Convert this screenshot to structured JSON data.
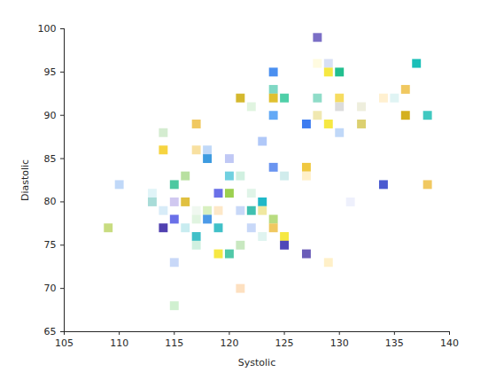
{
  "chart_data": {
    "type": "scatter",
    "xlabel": "Systolic",
    "ylabel": "Diastolic",
    "marker": "square",
    "xlim": [
      105,
      140
    ],
    "xticks": [
      105,
      110,
      115,
      120,
      125,
      130,
      135,
      140
    ],
    "ylim": [
      65,
      100
    ],
    "yticks": [
      65,
      70,
      75,
      80,
      85,
      90,
      95,
      100
    ],
    "grid": false,
    "x": [
      128,
      137,
      128,
      129,
      124,
      129,
      130,
      136,
      124,
      121,
      124,
      125,
      128,
      130,
      134,
      135,
      122,
      130,
      132,
      117,
      124,
      128,
      136,
      138,
      127,
      129,
      132,
      130,
      114,
      123,
      114,
      117,
      118,
      118,
      120,
      124,
      127,
      127,
      125,
      116,
      120,
      121,
      110,
      115,
      134,
      138,
      113,
      119,
      120,
      122,
      113,
      115,
      116,
      123,
      131,
      114,
      117,
      118,
      119,
      121,
      122,
      123,
      124,
      115,
      118,
      117,
      109,
      114,
      116,
      119,
      122,
      124,
      117,
      123,
      125,
      117,
      121,
      125,
      119,
      120,
      127,
      115,
      129,
      121,
      115
    ],
    "y": [
      99,
      96,
      96,
      96,
      95,
      95,
      95,
      93,
      93,
      92,
      92,
      92,
      92,
      92,
      92,
      92,
      91,
      91,
      91,
      89,
      90,
      90,
      90,
      90,
      89,
      89,
      89,
      88,
      88,
      87,
      86,
      86,
      86,
      85,
      85,
      84,
      84,
      83,
      83,
      83,
      83,
      83,
      82,
      82,
      82,
      82,
      81,
      81,
      81,
      81,
      80,
      80,
      80,
      80,
      80,
      79,
      79,
      79,
      79,
      79,
      79,
      79,
      78,
      78,
      78,
      78,
      77,
      77,
      77,
      77,
      77,
      77,
      76,
      76,
      76,
      75,
      75,
      75,
      74,
      74,
      74,
      73,
      73,
      70,
      68
    ],
    "colors": [
      "#7b6fc6",
      "#1abfb8",
      "#fffbe0",
      "#d8e0f5",
      "#4a8ff0",
      "#f6e842",
      "#22bf8f",
      "#f0c860",
      "#7fd8c4",
      "#d4b82e",
      "#e0c030",
      "#4fcfa8",
      "#8fdcc8",
      "#f6dc60",
      "#fff0d0",
      "#e0f4f4",
      "#e0f4e0",
      "#dcdcdc",
      "#eeeedd",
      "#f0c860",
      "#63a9f6",
      "#f0e8b0",
      "#d4b020",
      "#40c8c0",
      "#3d7cf0",
      "#f6e842",
      "#dcd070",
      "#c0d8f8",
      "#d4ecd0",
      "#b0c8f8",
      "#f6d440",
      "#f8e0a0",
      "#c0d8f8",
      "#3d9be0",
      "#c0c8f5",
      "#6a94f0",
      "#f0c840",
      "#fff0c8",
      "#d0ecec",
      "#b8e0a0",
      "#70d0e0",
      "#d0f0e0",
      "#c0d8f8",
      "#4cc8a0",
      "#4a5ad0",
      "#f0c860",
      "#e0f4f8",
      "#6a70e8",
      "#9cd050",
      "#e0f4e8",
      "#a8dcd8",
      "#d0c8f0",
      "#e0c040",
      "#20b8c8",
      "#eef0fc",
      "#d8ecf8",
      "#f0f8f0",
      "#d8f0c0",
      "#fde8c8",
      "#c8d8f8",
      "#40c0b0",
      "#f0e8a0",
      "#b8dc80",
      "#6a70e8",
      "#4c9ae8",
      "#e0f4e0",
      "#c8dc80",
      "#5040b0",
      "#c8ecf0",
      "#40c0c8",
      "#c8d8f8",
      "#f0c860",
      "#40c0c8",
      "#e0f4f0",
      "#f6e842",
      "#d0f0e0",
      "#c8e8c0",
      "#5048b8",
      "#f6e842",
      "#50c8a8",
      "#6a5cb8",
      "#c8d8f8",
      "#fff0c8",
      "#fde0c0",
      "#d0f0d0"
    ]
  }
}
